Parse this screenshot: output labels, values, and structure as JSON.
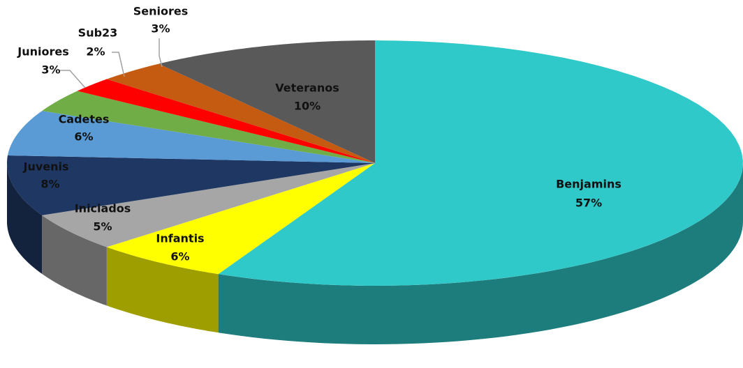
{
  "chart_data": {
    "type": "pie",
    "categories": [
      "Benjamins",
      "Infantis",
      "Iniciados",
      "Juvenis",
      "Cadetes",
      "Juniores",
      "Sub23",
      "Seniores",
      "Veteranos"
    ],
    "values": [
      57,
      6,
      5,
      8,
      6,
      3,
      2,
      3,
      10
    ],
    "value_labels": [
      "57%",
      "6%",
      "5%",
      "8%",
      "6%",
      "3%",
      "2%",
      "3%",
      "10%"
    ],
    "colors": [
      "#2fc9c9",
      "#ffff00",
      "#a6a6a6",
      "#1f3763",
      "#5b9bd5",
      "#70ad47",
      "#ff0000",
      "#c55a11",
      "#595959"
    ]
  }
}
